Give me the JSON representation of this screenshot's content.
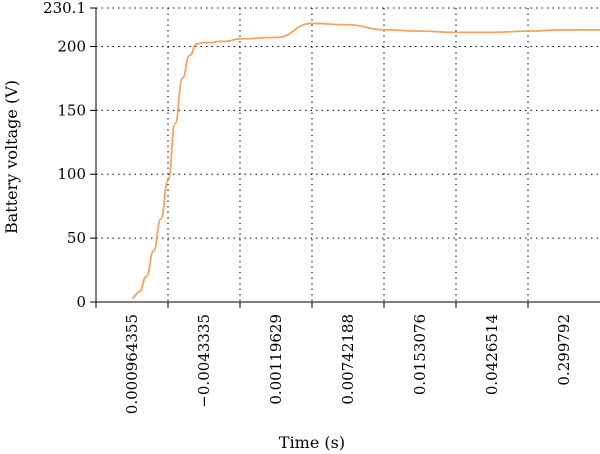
{
  "chart_data": {
    "type": "line",
    "title": "",
    "xlabel": "Time (s)",
    "ylabel": "Battery voltage (V)",
    "x_tick_labels": [
      "0.000964355",
      "−0.0043335",
      "0.00119629",
      "0.00742188",
      "0.0153076",
      "0.0426514",
      "0.299792"
    ],
    "y_tick_labels": [
      "0",
      "50",
      "100",
      "150",
      "200",
      "230.1"
    ],
    "y_ticks": [
      0,
      50,
      100,
      150,
      200,
      230.1
    ],
    "ylim": [
      0,
      230.1
    ],
    "grid": true,
    "grid_style": "dotted",
    "series": [
      {
        "color": "#f4a460",
        "x_index": [
          0,
          0.1,
          0.2,
          0.3,
          0.4,
          0.5,
          0.6,
          0.7,
          0.8,
          0.9,
          1.0,
          1.1,
          1.2,
          1.3,
          1.5,
          2.0,
          2.5,
          3.0,
          3.5,
          4.0,
          4.5,
          5.0,
          5.5,
          6.0,
          6.5
        ],
        "values": [
          3,
          8,
          20,
          40,
          65,
          95,
          140,
          175,
          193,
          202,
          203,
          203,
          204,
          204,
          206,
          207,
          218,
          217,
          213,
          212,
          211,
          211,
          212,
          213,
          213
        ]
      }
    ]
  }
}
